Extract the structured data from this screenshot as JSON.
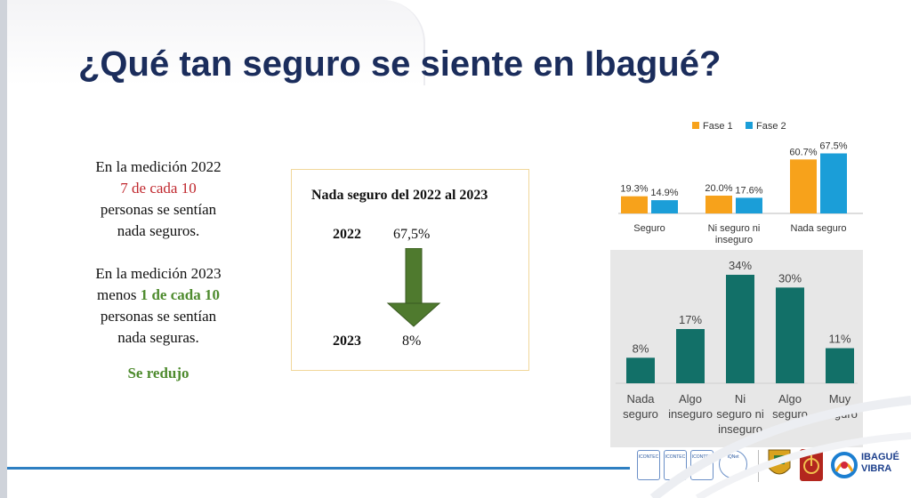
{
  "title": "¿Qué tan seguro se siente en Ibagué?",
  "left_text": {
    "p1_line1": "En la medición 2022",
    "p1_highlight": "7 de cada 10",
    "p1_line3": "personas se sentían",
    "p1_line4": "nada seguros.",
    "p2_line1": "En la medición 2023",
    "p2_prefix": "menos",
    "p2_highlight": "1 de cada 10",
    "p2_line3": "personas se sentían",
    "p2_line4": "nada seguras.",
    "result": "Se redujo"
  },
  "box": {
    "title": "Nada seguro del 2022 al 2023",
    "year1": "2022",
    "value1": "67,5%",
    "year2": "2023",
    "value2": "8%"
  },
  "chart_data": [
    {
      "type": "bar",
      "categories": [
        "Seguro",
        "Ni seguro ni inseguro",
        "Nada seguro"
      ],
      "series": [
        {
          "name": "Fase 1",
          "values": [
            19.3,
            20.0,
            60.7
          ],
          "labels": [
            "19.3%",
            "20.0%",
            "60.7%"
          ],
          "color": "#f7a21b"
        },
        {
          "name": "Fase 2",
          "values": [
            14.9,
            17.6,
            67.5
          ],
          "labels": [
            "14.9%",
            "17.6%",
            "67.5%"
          ],
          "color": "#1b9ed8"
        }
      ],
      "category_lines": [
        [
          "Seguro"
        ],
        [
          "Ni seguro ni",
          "inseguro"
        ],
        [
          "Nada seguro"
        ]
      ],
      "legend": "top"
    },
    {
      "type": "bar",
      "categories": [
        "Nada seguro",
        "Algo inseguro",
        "Ni seguro ni inseguro",
        "Algo seguro",
        "Muy seguro"
      ],
      "values": [
        8,
        17,
        34,
        30,
        11
      ],
      "labels": [
        "8%",
        "17%",
        "34%",
        "30%",
        "11%"
      ],
      "category_lines": [
        [
          "Nada",
          "seguro"
        ],
        [
          "Algo",
          "inseguro"
        ],
        [
          "Ni",
          "seguro ni",
          "inseguro"
        ],
        [
          "Algo",
          "seguro"
        ],
        [
          "Muy",
          "seguro"
        ]
      ],
      "color": "#127068"
    }
  ],
  "footer": {
    "badges": [
      "ICONTEC",
      "ICONTEC",
      "ICONTEC",
      "IQNet"
    ],
    "logo": "IBAGUÉ VIBRA"
  },
  "colors": {
    "title": "#1b2d5c",
    "red": "#c0272d",
    "green": "#4e8b2e",
    "rule": "#2e7fc2"
  }
}
